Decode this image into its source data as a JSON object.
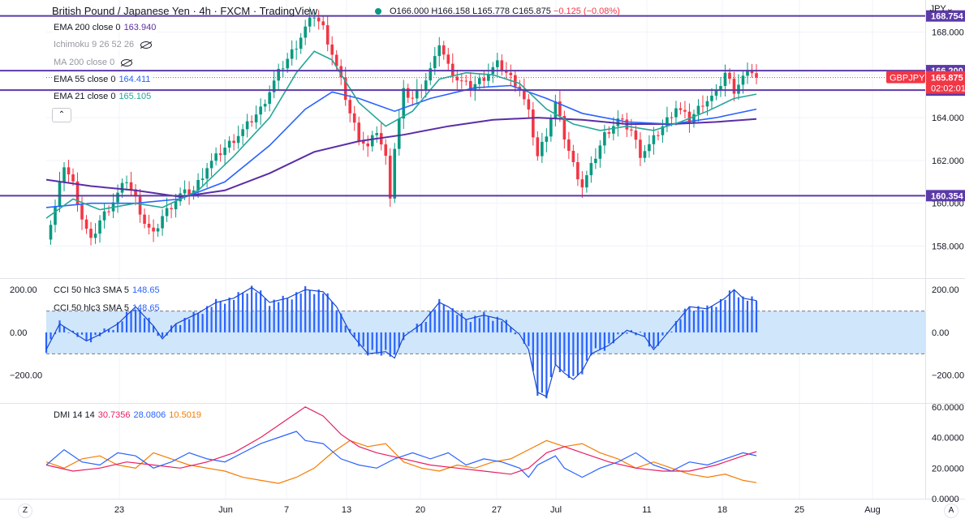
{
  "header": {
    "title": "British Pound / Japanese Yen · 4h · FXCM · TradingView",
    "ohlc_o": "O166.000",
    "ohlc_h": "H166.158",
    "ohlc_l": "L165.778",
    "ohlc_c": "C165.875",
    "ohlc_change": "−0.125 (−0.08%)",
    "currency": "JPY"
  },
  "legend": {
    "ema200": {
      "label": "EMA 200 close 0",
      "value": "163.940"
    },
    "ichimoku": {
      "label": "Ichimoku 9 26 52 26"
    },
    "ma200": {
      "label": "MA 200 close 0"
    },
    "ema55": {
      "label": "EMA 55 close 0",
      "value": "164.411"
    },
    "ema21": {
      "label": "EMA 21 close 0",
      "value": "165.105"
    },
    "collapse_icon": "chevron-up-icon"
  },
  "colors": {
    "bull": "#089981",
    "bear": "#f23645",
    "level": "#5b3aa8",
    "ema21": "#26a69a",
    "ema55": "#2962ff",
    "ema200": "#5b2da6",
    "cci": "#2962ff",
    "cci_band": "#cfe6fb",
    "plus_di": "#2962ff",
    "minus_di": "#f57c00",
    "adx": "#e91e63"
  },
  "chart_data": {
    "type": "line",
    "symbol": "GBPJPY",
    "timeframe": "4h",
    "price_axis": {
      "ticks": [
        "168.000",
        "166.000",
        "164.000",
        "162.000",
        "160.000",
        "158.000"
      ],
      "ylim": [
        156.5,
        169.5
      ]
    },
    "x_axis": {
      "ticks": [
        "23",
        "Jun",
        "7",
        "13",
        "20",
        "27",
        "Jul",
        "11",
        "18",
        "25",
        "Aug"
      ]
    },
    "horizontal_levels": [
      {
        "value": 168.754,
        "label": "168.754"
      },
      {
        "value": 166.2,
        "label": "166.200"
      },
      {
        "value": 165.287,
        "label": "165.287"
      },
      {
        "value": 160.354,
        "label": "160.354"
      }
    ],
    "last_price": {
      "label": "GBPJPY",
      "value": "165.875",
      "countdown": "02:02:01",
      "y": 165.875
    },
    "price_path": [
      {
        "t": 0,
        "p": 158.3
      },
      {
        "t": 2,
        "p": 159.8
      },
      {
        "t": 4,
        "p": 161.8
      },
      {
        "t": 6,
        "p": 160.9
      },
      {
        "t": 8,
        "p": 159.3
      },
      {
        "t": 10,
        "p": 158.2
      },
      {
        "t": 12,
        "p": 159.2
      },
      {
        "t": 15,
        "p": 160.1
      },
      {
        "t": 18,
        "p": 161.1
      },
      {
        "t": 20,
        "p": 160.2
      },
      {
        "t": 22,
        "p": 159.1
      },
      {
        "t": 24,
        "p": 158.5
      },
      {
        "t": 26,
        "p": 159.4
      },
      {
        "t": 30,
        "p": 160.4
      },
      {
        "t": 33,
        "p": 160.6
      },
      {
        "t": 36,
        "p": 161.7
      },
      {
        "t": 40,
        "p": 162.6
      },
      {
        "t": 44,
        "p": 163.4
      },
      {
        "t": 48,
        "p": 164.4
      },
      {
        "t": 52,
        "p": 166.1
      },
      {
        "t": 56,
        "p": 167.4
      },
      {
        "t": 58,
        "p": 168.2
      },
      {
        "t": 60,
        "p": 168.8
      },
      {
        "t": 62,
        "p": 168.2
      },
      {
        "t": 64,
        "p": 167.0
      },
      {
        "t": 66,
        "p": 165.7
      },
      {
        "t": 68,
        "p": 164.2
      },
      {
        "t": 70,
        "p": 163.1
      },
      {
        "t": 72,
        "p": 162.6
      },
      {
        "t": 74,
        "p": 163.4
      },
      {
        "t": 76,
        "p": 162.1
      },
      {
        "t": 77,
        "p": 160.4
      },
      {
        "t": 78,
        "p": 162.6
      },
      {
        "t": 80,
        "p": 165.2
      },
      {
        "t": 82,
        "p": 164.9
      },
      {
        "t": 85,
        "p": 165.8
      },
      {
        "t": 87,
        "p": 166.7
      },
      {
        "t": 88,
        "p": 167.5
      },
      {
        "t": 90,
        "p": 166.4
      },
      {
        "t": 92,
        "p": 165.8
      },
      {
        "t": 95,
        "p": 165.4
      },
      {
        "t": 98,
        "p": 165.9
      },
      {
        "t": 101,
        "p": 166.5
      },
      {
        "t": 103,
        "p": 166.1
      },
      {
        "t": 106,
        "p": 165.4
      },
      {
        "t": 108,
        "p": 164.2
      },
      {
        "t": 110,
        "p": 162.2
      },
      {
        "t": 112,
        "p": 163.3
      },
      {
        "t": 114,
        "p": 164.7
      },
      {
        "t": 116,
        "p": 163.1
      },
      {
        "t": 118,
        "p": 161.8
      },
      {
        "t": 120,
        "p": 160.8
      },
      {
        "t": 122,
        "p": 161.7
      },
      {
        "t": 125,
        "p": 163.2
      },
      {
        "t": 128,
        "p": 163.9
      },
      {
        "t": 131,
        "p": 163.4
      },
      {
        "t": 133,
        "p": 162.3
      },
      {
        "t": 135,
        "p": 162.7
      },
      {
        "t": 138,
        "p": 163.6
      },
      {
        "t": 141,
        "p": 164.5
      },
      {
        "t": 144,
        "p": 163.9
      },
      {
        "t": 147,
        "p": 164.7
      },
      {
        "t": 150,
        "p": 165.1
      },
      {
        "t": 152,
        "p": 166.1
      },
      {
        "t": 154,
        "p": 165.3
      },
      {
        "t": 156,
        "p": 165.9
      },
      {
        "t": 158,
        "p": 166.2
      },
      {
        "t": 159,
        "p": 165.875
      }
    ],
    "ema21": [
      {
        "t": 0,
        "p": 159.3
      },
      {
        "t": 6,
        "p": 160.2
      },
      {
        "t": 12,
        "p": 159.7
      },
      {
        "t": 20,
        "p": 160.0
      },
      {
        "t": 26,
        "p": 159.8
      },
      {
        "t": 34,
        "p": 160.6
      },
      {
        "t": 42,
        "p": 162.2
      },
      {
        "t": 50,
        "p": 164.0
      },
      {
        "t": 56,
        "p": 166.1
      },
      {
        "t": 60,
        "p": 167.1
      },
      {
        "t": 64,
        "p": 166.7
      },
      {
        "t": 70,
        "p": 164.7
      },
      {
        "t": 76,
        "p": 163.6
      },
      {
        "t": 82,
        "p": 164.3
      },
      {
        "t": 88,
        "p": 165.8
      },
      {
        "t": 94,
        "p": 166.1
      },
      {
        "t": 100,
        "p": 166.0
      },
      {
        "t": 106,
        "p": 165.6
      },
      {
        "t": 112,
        "p": 164.4
      },
      {
        "t": 118,
        "p": 163.7
      },
      {
        "t": 124,
        "p": 163.4
      },
      {
        "t": 130,
        "p": 163.6
      },
      {
        "t": 136,
        "p": 163.4
      },
      {
        "t": 142,
        "p": 163.8
      },
      {
        "t": 148,
        "p": 164.3
      },
      {
        "t": 154,
        "p": 164.9
      },
      {
        "t": 159,
        "p": 165.1
      }
    ],
    "ema55": [
      {
        "t": 0,
        "p": 159.8
      },
      {
        "t": 10,
        "p": 160.0
      },
      {
        "t": 20,
        "p": 160.0
      },
      {
        "t": 30,
        "p": 160.2
      },
      {
        "t": 40,
        "p": 161.0
      },
      {
        "t": 50,
        "p": 162.7
      },
      {
        "t": 58,
        "p": 164.4
      },
      {
        "t": 64,
        "p": 165.2
      },
      {
        "t": 70,
        "p": 164.9
      },
      {
        "t": 78,
        "p": 164.3
      },
      {
        "t": 86,
        "p": 164.9
      },
      {
        "t": 96,
        "p": 165.4
      },
      {
        "t": 104,
        "p": 165.5
      },
      {
        "t": 112,
        "p": 164.9
      },
      {
        "t": 120,
        "p": 164.2
      },
      {
        "t": 130,
        "p": 163.8
      },
      {
        "t": 140,
        "p": 163.7
      },
      {
        "t": 150,
        "p": 164.0
      },
      {
        "t": 159,
        "p": 164.4
      }
    ],
    "ema200": [
      {
        "t": 0,
        "p": 161.1
      },
      {
        "t": 10,
        "p": 160.8
      },
      {
        "t": 20,
        "p": 160.6
      },
      {
        "t": 30,
        "p": 160.3
      },
      {
        "t": 40,
        "p": 160.6
      },
      {
        "t": 50,
        "p": 161.4
      },
      {
        "t": 60,
        "p": 162.4
      },
      {
        "t": 70,
        "p": 162.9
      },
      {
        "t": 80,
        "p": 163.2
      },
      {
        "t": 90,
        "p": 163.6
      },
      {
        "t": 100,
        "p": 163.9
      },
      {
        "t": 110,
        "p": 164.0
      },
      {
        "t": 120,
        "p": 163.9
      },
      {
        "t": 130,
        "p": 163.7
      },
      {
        "t": 140,
        "p": 163.7
      },
      {
        "t": 150,
        "p": 163.8
      },
      {
        "t": 159,
        "p": 163.94
      }
    ],
    "cci": {
      "label": "CCI 50 hlc3 SMA 5",
      "value": "148.65",
      "ma_value": "148.65",
      "axis_ticks": [
        "200.00",
        "0.00",
        "−200.00"
      ],
      "ylim": [
        -330,
        250
      ],
      "band": [
        100,
        -100
      ],
      "points": [
        {
          "t": 0,
          "v": -80
        },
        {
          "t": 3,
          "v": 40
        },
        {
          "t": 6,
          "v": 0
        },
        {
          "t": 9,
          "v": -40
        },
        {
          "t": 12,
          "v": -10
        },
        {
          "t": 16,
          "v": 40
        },
        {
          "t": 20,
          "v": 120
        },
        {
          "t": 24,
          "v": 30
        },
        {
          "t": 26,
          "v": -30
        },
        {
          "t": 29,
          "v": 40
        },
        {
          "t": 34,
          "v": 90
        },
        {
          "t": 38,
          "v": 140
        },
        {
          "t": 42,
          "v": 160
        },
        {
          "t": 46,
          "v": 210
        },
        {
          "t": 48,
          "v": 180
        },
        {
          "t": 50,
          "v": 140
        },
        {
          "t": 54,
          "v": 160
        },
        {
          "t": 58,
          "v": 200
        },
        {
          "t": 62,
          "v": 190
        },
        {
          "t": 65,
          "v": 120
        },
        {
          "t": 68,
          "v": 0
        },
        {
          "t": 72,
          "v": -100
        },
        {
          "t": 76,
          "v": -90
        },
        {
          "t": 78,
          "v": -120
        },
        {
          "t": 80,
          "v": -20
        },
        {
          "t": 84,
          "v": 40
        },
        {
          "t": 88,
          "v": 140
        },
        {
          "t": 90,
          "v": 120
        },
        {
          "t": 94,
          "v": 60
        },
        {
          "t": 98,
          "v": 80
        },
        {
          "t": 102,
          "v": 60
        },
        {
          "t": 106,
          "v": -10
        },
        {
          "t": 108,
          "v": -80
        },
        {
          "t": 110,
          "v": -280
        },
        {
          "t": 112,
          "v": -300
        },
        {
          "t": 114,
          "v": -150
        },
        {
          "t": 116,
          "v": -190
        },
        {
          "t": 118,
          "v": -220
        },
        {
          "t": 120,
          "v": -180
        },
        {
          "t": 122,
          "v": -100
        },
        {
          "t": 126,
          "v": -60
        },
        {
          "t": 130,
          "v": 10
        },
        {
          "t": 134,
          "v": -20
        },
        {
          "t": 136,
          "v": -80
        },
        {
          "t": 140,
          "v": 20
        },
        {
          "t": 144,
          "v": 120
        },
        {
          "t": 148,
          "v": 110
        },
        {
          "t": 152,
          "v": 160
        },
        {
          "t": 154,
          "v": 200
        },
        {
          "t": 156,
          "v": 160
        },
        {
          "t": 159,
          "v": 148.65
        }
      ]
    },
    "dmi": {
      "label": "DMI 14 14",
      "adx_value": "30.7356",
      "plus_value": "28.0806",
      "minus_value": "10.5019",
      "axis_ticks": [
        "60.0000",
        "40.0000",
        "20.0000",
        "0.0000"
      ],
      "ylim": [
        0,
        62
      ],
      "plus_di": [
        {
          "t": 0,
          "v": 22
        },
        {
          "t": 4,
          "v": 32
        },
        {
          "t": 8,
          "v": 24
        },
        {
          "t": 12,
          "v": 22
        },
        {
          "t": 16,
          "v": 30
        },
        {
          "t": 20,
          "v": 28
        },
        {
          "t": 24,
          "v": 20
        },
        {
          "t": 28,
          "v": 24
        },
        {
          "t": 32,
          "v": 30
        },
        {
          "t": 36,
          "v": 26
        },
        {
          "t": 40,
          "v": 24
        },
        {
          "t": 44,
          "v": 30
        },
        {
          "t": 48,
          "v": 36
        },
        {
          "t": 52,
          "v": 40
        },
        {
          "t": 56,
          "v": 44
        },
        {
          "t": 58,
          "v": 38
        },
        {
          "t": 62,
          "v": 36
        },
        {
          "t": 66,
          "v": 26
        },
        {
          "t": 70,
          "v": 22
        },
        {
          "t": 74,
          "v": 20
        },
        {
          "t": 78,
          "v": 26
        },
        {
          "t": 82,
          "v": 30
        },
        {
          "t": 86,
          "v": 26
        },
        {
          "t": 90,
          "v": 30
        },
        {
          "t": 94,
          "v": 22
        },
        {
          "t": 98,
          "v": 26
        },
        {
          "t": 102,
          "v": 24
        },
        {
          "t": 106,
          "v": 20
        },
        {
          "t": 108,
          "v": 14
        },
        {
          "t": 110,
          "v": 22
        },
        {
          "t": 114,
          "v": 28
        },
        {
          "t": 116,
          "v": 20
        },
        {
          "t": 120,
          "v": 14
        },
        {
          "t": 124,
          "v": 20
        },
        {
          "t": 128,
          "v": 24
        },
        {
          "t": 132,
          "v": 30
        },
        {
          "t": 136,
          "v": 22
        },
        {
          "t": 140,
          "v": 18
        },
        {
          "t": 144,
          "v": 24
        },
        {
          "t": 148,
          "v": 22
        },
        {
          "t": 152,
          "v": 26
        },
        {
          "t": 156,
          "v": 30
        },
        {
          "t": 159,
          "v": 28.08
        }
      ],
      "minus_di": [
        {
          "t": 0,
          "v": 24
        },
        {
          "t": 4,
          "v": 20
        },
        {
          "t": 8,
          "v": 26
        },
        {
          "t": 12,
          "v": 28
        },
        {
          "t": 16,
          "v": 22
        },
        {
          "t": 20,
          "v": 20
        },
        {
          "t": 24,
          "v": 30
        },
        {
          "t": 28,
          "v": 26
        },
        {
          "t": 32,
          "v": 22
        },
        {
          "t": 36,
          "v": 20
        },
        {
          "t": 40,
          "v": 18
        },
        {
          "t": 44,
          "v": 14
        },
        {
          "t": 48,
          "v": 12
        },
        {
          "t": 52,
          "v": 10
        },
        {
          "t": 56,
          "v": 14
        },
        {
          "t": 60,
          "v": 20
        },
        {
          "t": 64,
          "v": 30
        },
        {
          "t": 68,
          "v": 38
        },
        {
          "t": 72,
          "v": 34
        },
        {
          "t": 76,
          "v": 36
        },
        {
          "t": 80,
          "v": 24
        },
        {
          "t": 84,
          "v": 20
        },
        {
          "t": 88,
          "v": 18
        },
        {
          "t": 92,
          "v": 22
        },
        {
          "t": 96,
          "v": 20
        },
        {
          "t": 100,
          "v": 24
        },
        {
          "t": 104,
          "v": 26
        },
        {
          "t": 108,
          "v": 32
        },
        {
          "t": 112,
          "v": 38
        },
        {
          "t": 116,
          "v": 34
        },
        {
          "t": 120,
          "v": 36
        },
        {
          "t": 124,
          "v": 30
        },
        {
          "t": 128,
          "v": 26
        },
        {
          "t": 132,
          "v": 20
        },
        {
          "t": 136,
          "v": 24
        },
        {
          "t": 140,
          "v": 20
        },
        {
          "t": 144,
          "v": 16
        },
        {
          "t": 148,
          "v": 14
        },
        {
          "t": 152,
          "v": 16
        },
        {
          "t": 156,
          "v": 12
        },
        {
          "t": 159,
          "v": 10.5
        }
      ],
      "adx": [
        {
          "t": 0,
          "v": 22
        },
        {
          "t": 6,
          "v": 18
        },
        {
          "t": 12,
          "v": 20
        },
        {
          "t": 18,
          "v": 24
        },
        {
          "t": 24,
          "v": 22
        },
        {
          "t": 30,
          "v": 20
        },
        {
          "t": 36,
          "v": 24
        },
        {
          "t": 42,
          "v": 30
        },
        {
          "t": 48,
          "v": 40
        },
        {
          "t": 54,
          "v": 52
        },
        {
          "t": 58,
          "v": 60
        },
        {
          "t": 62,
          "v": 54
        },
        {
          "t": 66,
          "v": 42
        },
        {
          "t": 70,
          "v": 34
        },
        {
          "t": 74,
          "v": 30
        },
        {
          "t": 80,
          "v": 26
        },
        {
          "t": 86,
          "v": 22
        },
        {
          "t": 92,
          "v": 20
        },
        {
          "t": 98,
          "v": 18
        },
        {
          "t": 104,
          "v": 16
        },
        {
          "t": 108,
          "v": 20
        },
        {
          "t": 112,
          "v": 30
        },
        {
          "t": 116,
          "v": 34
        },
        {
          "t": 120,
          "v": 30
        },
        {
          "t": 126,
          "v": 24
        },
        {
          "t": 132,
          "v": 20
        },
        {
          "t": 138,
          "v": 18
        },
        {
          "t": 144,
          "v": 18
        },
        {
          "t": 150,
          "v": 22
        },
        {
          "t": 156,
          "v": 28
        },
        {
          "t": 159,
          "v": 30.74
        }
      ]
    }
  }
}
